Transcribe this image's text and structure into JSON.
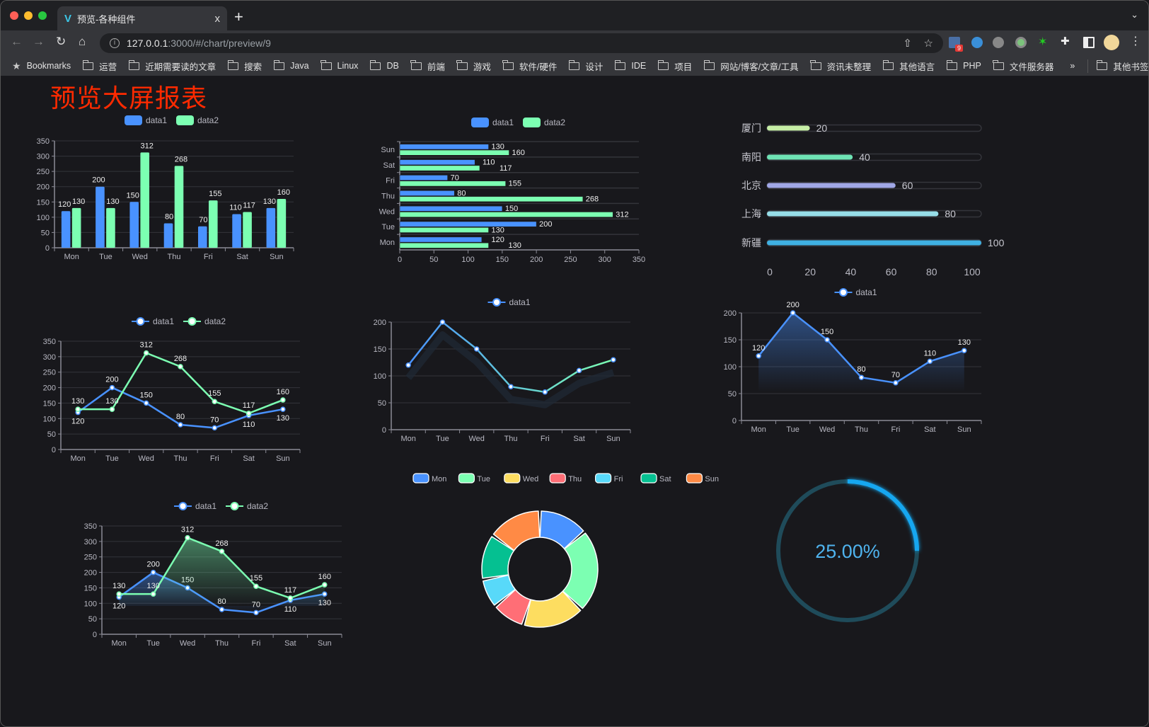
{
  "browser": {
    "tab_title": "预览-各种组件",
    "tab_close": "x",
    "new_tab": "+",
    "url_host": "127.0.0.1",
    "url_path": ":3000/#/chart/preview/9",
    "extension_badge": "9",
    "bookmarks": [
      "Bookmarks",
      "运营",
      "近期需要读的文章",
      "搜索",
      "Java",
      "Linux",
      "DB",
      "前端",
      "游戏",
      "软件/硬件",
      "设计",
      "IDE",
      "项目",
      "网站/博客/文章/工具",
      "资讯未整理",
      "其他语言",
      "PHP",
      "文件服务器"
    ],
    "bookmarks_overflow": "»",
    "other_bookmarks": "其他书签"
  },
  "page": {
    "title": "预览大屏报表",
    "title_color": "#ff2a00"
  },
  "colors": {
    "blue": "#4992ff",
    "green": "#7cffb2",
    "yellow": "#fddd60",
    "red": "#ff6e76",
    "cyan": "#58d9f9",
    "teal": "#05c091",
    "orange": "#ff8a45",
    "background": "#18181c"
  },
  "chart_data": [
    {
      "type": "bar",
      "orientation": "vertical",
      "categories": [
        "Mon",
        "Tue",
        "Wed",
        "Thu",
        "Fri",
        "Sat",
        "Sun"
      ],
      "series": [
        {
          "name": "data1",
          "values": [
            120,
            200,
            150,
            80,
            70,
            110,
            130
          ],
          "color": "#4992ff"
        },
        {
          "name": "data2",
          "values": [
            130,
            130,
            312,
            268,
            155,
            117,
            160
          ],
          "color": "#7cffb2"
        }
      ],
      "ylim": [
        0,
        350
      ],
      "yticks": [
        0,
        50,
        100,
        150,
        200,
        250,
        300,
        350
      ],
      "grid": true,
      "legend": "top",
      "data_labels": true
    },
    {
      "type": "bar",
      "orientation": "horizontal",
      "categories": [
        "Mon",
        "Tue",
        "Wed",
        "Thu",
        "Fri",
        "Sat",
        "Sun"
      ],
      "series": [
        {
          "name": "data1",
          "values": [
            120,
            200,
            150,
            80,
            70,
            110,
            130
          ],
          "color": "#4992ff"
        },
        {
          "name": "data2",
          "values": [
            130,
            130,
            312,
            268,
            155,
            117,
            160
          ],
          "color": "#7cffb2"
        }
      ],
      "xlim": [
        0,
        350
      ],
      "xticks": [
        0,
        50,
        100,
        150,
        200,
        250,
        300,
        350
      ],
      "grid": true,
      "legend": "top",
      "data_labels": true
    },
    {
      "type": "bar",
      "orientation": "horizontal",
      "style": "progress",
      "categories": [
        "厦门",
        "南阳",
        "北京",
        "上海",
        "新疆"
      ],
      "values": [
        20,
        40,
        60,
        80,
        100
      ],
      "colors": [
        "#c6eea6",
        "#6ee3b4",
        "#a0a7e6",
        "#96dee8",
        "#3fb1e3"
      ],
      "xlim": [
        0,
        100
      ],
      "xticks": [
        0,
        20,
        40,
        60,
        80,
        100
      ],
      "data_labels": true
    },
    {
      "type": "line",
      "categories": [
        "Mon",
        "Tue",
        "Wed",
        "Thu",
        "Fri",
        "Sat",
        "Sun"
      ],
      "series": [
        {
          "name": "data1",
          "values": [
            120,
            200,
            150,
            80,
            70,
            110,
            130
          ],
          "color": "#4992ff"
        },
        {
          "name": "data2",
          "values": [
            130,
            130,
            312,
            268,
            155,
            117,
            160
          ],
          "color": "#7cffb2"
        }
      ],
      "ylim": [
        0,
        350
      ],
      "yticks": [
        0,
        50,
        100,
        150,
        200,
        250,
        300,
        350
      ],
      "grid": true,
      "legend": "top",
      "data_labels": true
    },
    {
      "type": "line",
      "style": "gradient-with-shadow",
      "categories": [
        "Mon",
        "Tue",
        "Wed",
        "Thu",
        "Fri",
        "Sat",
        "Sun"
      ],
      "series": [
        {
          "name": "data1",
          "values": [
            120,
            200,
            150,
            80,
            70,
            110,
            130
          ],
          "color": "#4992ff",
          "color_end": "#7cffb2"
        }
      ],
      "ylim": [
        0,
        200
      ],
      "yticks": [
        0,
        50,
        100,
        150,
        200
      ],
      "grid": true,
      "legend": "top",
      "data_labels": false
    },
    {
      "type": "area",
      "categories": [
        "Mon",
        "Tue",
        "Wed",
        "Thu",
        "Fri",
        "Sat",
        "Sun"
      ],
      "series": [
        {
          "name": "data1",
          "values": [
            120,
            200,
            150,
            80,
            70,
            110,
            130
          ],
          "color": "#4992ff"
        }
      ],
      "ylim": [
        0,
        200
      ],
      "yticks": [
        0,
        50,
        100,
        150,
        200
      ],
      "grid": true,
      "legend": "top",
      "data_labels": true
    },
    {
      "type": "area",
      "categories": [
        "Mon",
        "Tue",
        "Wed",
        "Thu",
        "Fri",
        "Sat",
        "Sun"
      ],
      "series": [
        {
          "name": "data1",
          "values": [
            120,
            200,
            150,
            80,
            70,
            110,
            130
          ],
          "color": "#4992ff"
        },
        {
          "name": "data2",
          "values": [
            130,
            130,
            312,
            268,
            155,
            117,
            160
          ],
          "color": "#7cffb2"
        }
      ],
      "ylim": [
        0,
        350
      ],
      "yticks": [
        0,
        50,
        100,
        150,
        200,
        250,
        300,
        350
      ],
      "grid": true,
      "legend": "top",
      "data_labels": true
    },
    {
      "type": "pie",
      "style": "donut",
      "categories": [
        "Mon",
        "Tue",
        "Wed",
        "Thu",
        "Fri",
        "Sat",
        "Sun"
      ],
      "values": [
        120,
        200,
        150,
        80,
        70,
        110,
        130
      ],
      "colors": [
        "#4992ff",
        "#7cffb2",
        "#fddd60",
        "#ff6e76",
        "#58d9f9",
        "#05c091",
        "#ff8a45"
      ],
      "legend": "top"
    },
    {
      "type": "gauge",
      "value": 25,
      "max": 100,
      "label": "25.00%",
      "color": "#16a7f0",
      "track_color": "#1f4b5a",
      "label_color": "#4fb3ee"
    }
  ]
}
